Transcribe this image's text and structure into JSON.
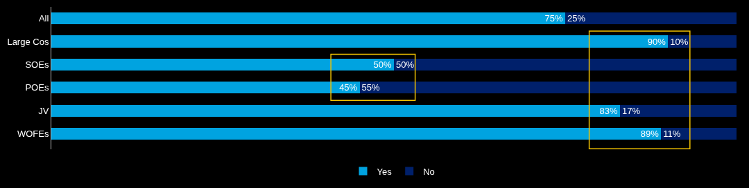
{
  "chart_data": {
    "type": "bar",
    "orientation": "horizontal",
    "stacked": true,
    "legend": "bottom",
    "tick_labels": "y",
    "xlim": [
      0,
      100
    ],
    "categories": [
      "All",
      "Large Cos",
      "SOEs",
      "POEs",
      "JV",
      "WOFEs"
    ],
    "series": [
      {
        "name": "Yes",
        "color": "#00a3e0",
        "values": [
          75,
          90,
          50,
          45,
          83,
          89
        ],
        "value_labels": [
          "75%",
          "90%",
          "50%",
          "45%",
          "83%",
          "89%"
        ]
      },
      {
        "name": "No",
        "color": "#00206b",
        "values": [
          25,
          10,
          50,
          55,
          17,
          11
        ],
        "value_labels": [
          "25%",
          "10%",
          "50%",
          "55%",
          "17%",
          "11%"
        ]
      }
    ]
  }
}
